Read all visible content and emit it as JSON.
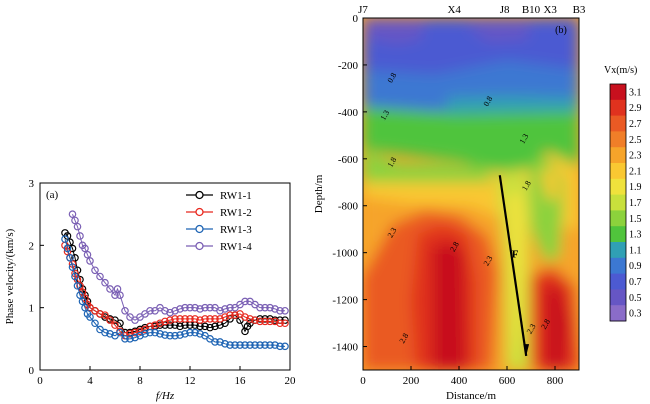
{
  "chart_data": [
    {
      "type": "scatter",
      "panel_label": "(a)",
      "xlabel": "f/Hz",
      "ylabel": "Phase velocity/(km/s)",
      "xlim": [
        0,
        20
      ],
      "ylim": [
        0,
        3
      ],
      "xticks": [
        0,
        4,
        8,
        12,
        16,
        20
      ],
      "yticks": [
        0,
        1,
        2,
        3
      ],
      "legend_position": "top-right",
      "series": [
        {
          "name": "RW1-1",
          "color": "#000000",
          "x": [
            2.0,
            2.2,
            2.4,
            2.6,
            2.8,
            3.0,
            3.2,
            3.4,
            3.6,
            3.8,
            4.0,
            4.4,
            4.8,
            5.2,
            5.6,
            6.0,
            6.4,
            6.8,
            7.2,
            7.6,
            8.0,
            8.4,
            8.8,
            9.2,
            9.6,
            10.0,
            10.4,
            10.8,
            11.2,
            11.6,
            12.0,
            12.4,
            12.8,
            13.2,
            13.6,
            14.0,
            14.4,
            14.8,
            15.2,
            15.6,
            16.0,
            16.4,
            16.6,
            16.8,
            17.2,
            17.6,
            18.0,
            18.4,
            18.8,
            19.2,
            19.6
          ],
          "y": [
            2.2,
            2.15,
            2.05,
            1.95,
            1.8,
            1.6,
            1.45,
            1.3,
            1.2,
            1.1,
            1.0,
            0.95,
            0.9,
            0.85,
            0.82,
            0.8,
            0.75,
            0.6,
            0.6,
            0.62,
            0.65,
            0.68,
            0.7,
            0.7,
            0.72,
            0.72,
            0.72,
            0.72,
            0.7,
            0.72,
            0.72,
            0.72,
            0.7,
            0.7,
            0.68,
            0.7,
            0.72,
            0.75,
            0.82,
            0.88,
            0.8,
            0.62,
            0.7,
            0.75,
            0.8,
            0.82,
            0.82,
            0.82,
            0.8,
            0.8,
            0.8
          ]
        },
        {
          "name": "RW1-2",
          "color": "#e8281e",
          "x": [
            2.0,
            2.2,
            2.4,
            2.6,
            2.8,
            3.0,
            3.2,
            3.4,
            3.6,
            3.8,
            4.0,
            4.4,
            4.8,
            5.2,
            5.6,
            6.0,
            6.4,
            6.8,
            7.2,
            7.6,
            8.0,
            8.4,
            8.8,
            9.2,
            9.6,
            10.0,
            10.4,
            10.8,
            11.2,
            11.6,
            12.0,
            12.4,
            12.8,
            13.2,
            13.6,
            14.0,
            14.4,
            14.8,
            15.2,
            15.6,
            16.0,
            16.4,
            16.8,
            17.2,
            17.6,
            18.0,
            18.4,
            18.8,
            19.2,
            19.6
          ],
          "y": [
            2.0,
            1.9,
            1.8,
            1.7,
            1.55,
            1.45,
            1.35,
            1.25,
            1.15,
            1.05,
            1.0,
            0.95,
            0.9,
            0.88,
            0.8,
            0.72,
            0.62,
            0.55,
            0.58,
            0.6,
            0.62,
            0.65,
            0.7,
            0.72,
            0.75,
            0.78,
            0.8,
            0.82,
            0.82,
            0.82,
            0.82,
            0.82,
            0.8,
            0.82,
            0.82,
            0.82,
            0.82,
            0.85,
            0.88,
            0.88,
            0.9,
            0.85,
            0.82,
            0.8,
            0.78,
            0.78,
            0.78,
            0.78,
            0.75,
            0.75
          ]
        },
        {
          "name": "RW1-3",
          "color": "#1e64b4",
          "x": [
            2.0,
            2.2,
            2.4,
            2.6,
            2.8,
            3.0,
            3.2,
            3.4,
            3.6,
            3.8,
            4.0,
            4.4,
            4.8,
            5.2,
            5.6,
            6.0,
            6.4,
            6.8,
            7.2,
            7.6,
            8.0,
            8.4,
            8.8,
            9.2,
            9.6,
            10.0,
            10.4,
            10.8,
            11.2,
            11.6,
            12.0,
            12.4,
            12.8,
            13.2,
            13.6,
            14.0,
            14.4,
            14.8,
            15.2,
            15.6,
            16.0,
            16.4,
            16.8,
            17.2,
            17.6,
            18.0,
            18.4,
            18.8,
            19.2,
            19.6
          ],
          "y": [
            2.1,
            1.95,
            1.8,
            1.65,
            1.5,
            1.35,
            1.2,
            1.1,
            1.0,
            0.9,
            0.85,
            0.75,
            0.65,
            0.6,
            0.58,
            0.55,
            0.6,
            0.5,
            0.5,
            0.52,
            0.55,
            0.58,
            0.6,
            0.6,
            0.58,
            0.56,
            0.55,
            0.55,
            0.56,
            0.58,
            0.6,
            0.6,
            0.58,
            0.55,
            0.5,
            0.45,
            0.45,
            0.42,
            0.4,
            0.4,
            0.4,
            0.4,
            0.4,
            0.4,
            0.4,
            0.4,
            0.4,
            0.4,
            0.38,
            0.38
          ]
        },
        {
          "name": "RW1-4",
          "color": "#7a5fb4",
          "x": [
            2.6,
            2.8,
            3.0,
            3.2,
            3.4,
            3.6,
            3.8,
            4.0,
            4.4,
            4.8,
            5.2,
            5.6,
            6.0,
            6.2,
            6.4,
            6.8,
            7.2,
            7.6,
            8.0,
            8.4,
            8.8,
            9.2,
            9.6,
            10.0,
            10.4,
            10.8,
            11.2,
            11.6,
            12.0,
            12.4,
            12.8,
            13.2,
            13.6,
            14.0,
            14.4,
            14.8,
            15.2,
            15.6,
            16.0,
            16.4,
            16.8,
            17.2,
            17.6,
            18.0,
            18.4,
            18.8,
            19.2,
            19.6
          ],
          "y": [
            2.5,
            2.4,
            2.3,
            2.15,
            2.0,
            1.95,
            1.85,
            1.75,
            1.6,
            1.5,
            1.4,
            1.3,
            1.2,
            1.3,
            1.2,
            0.95,
            0.85,
            0.8,
            0.85,
            0.9,
            0.95,
            0.95,
            1.0,
            0.95,
            0.92,
            0.95,
            0.98,
            1.0,
            1.0,
            1.0,
            0.98,
            1.0,
            1.0,
            1.0,
            0.95,
            0.98,
            1.0,
            1.0,
            1.05,
            1.1,
            1.1,
            1.05,
            1.0,
            1.0,
            1.0,
            0.98,
            0.95,
            0.95
          ]
        }
      ]
    },
    {
      "type": "heatmap",
      "panel_label": "(b)",
      "xlabel": "Distance/m",
      "ylabel": "Depth/m",
      "xlim": [
        0,
        900
      ],
      "ylim": [
        -1500,
        0
      ],
      "xticks": [
        0,
        200,
        400,
        600,
        800
      ],
      "yticks": [
        0,
        -200,
        -400,
        -600,
        -800,
        -1000,
        -1200,
        -1400
      ],
      "top_labels": [
        {
          "name": "J7",
          "x": 0
        },
        {
          "name": "X4",
          "x": 380
        },
        {
          "name": "J8",
          "x": 590
        },
        {
          "name": "B10",
          "x": 700
        },
        {
          "name": "X3",
          "x": 780
        },
        {
          "name": "B3",
          "x": 900
        }
      ],
      "fault_label": "F",
      "contour_labels": [
        {
          "text": "0.8",
          "x": 130,
          "y": -260
        },
        {
          "text": "0.8",
          "x": 530,
          "y": -360
        },
        {
          "text": "1.3",
          "x": 100,
          "y": -420
        },
        {
          "text": "1.3",
          "x": 680,
          "y": -520
        },
        {
          "text": "1.8",
          "x": 130,
          "y": -620
        },
        {
          "text": "1.8",
          "x": 690,
          "y": -720
        },
        {
          "text": "2.3",
          "x": 130,
          "y": -920
        },
        {
          "text": "2.8",
          "x": 390,
          "y": -980
        },
        {
          "text": "2.3",
          "x": 530,
          "y": -1040
        },
        {
          "text": "2.8",
          "x": 180,
          "y": -1370
        },
        {
          "text": "2.3",
          "x": 710,
          "y": -1330
        },
        {
          "text": "2.8",
          "x": 770,
          "y": -1310
        }
      ],
      "colorbar": {
        "title": "Vx(m/s)",
        "ticks": [
          "3.1",
          "2.9",
          "2.7",
          "2.5",
          "2.3",
          "2.1",
          "1.9",
          "1.7",
          "1.5",
          "1.3",
          "1.1",
          "0.9",
          "0.7",
          "0.5",
          "0.3"
        ],
        "colors": [
          "#c8101e",
          "#e0321e",
          "#ea5a24",
          "#f07e28",
          "#f6a42a",
          "#f9c832",
          "#f0e23c",
          "#c8e03c",
          "#8cd23c",
          "#50c43c",
          "#30a0b4",
          "#3c78d2",
          "#4c5ad2",
          "#6656c4",
          "#8a6cc8"
        ]
      }
    }
  ]
}
